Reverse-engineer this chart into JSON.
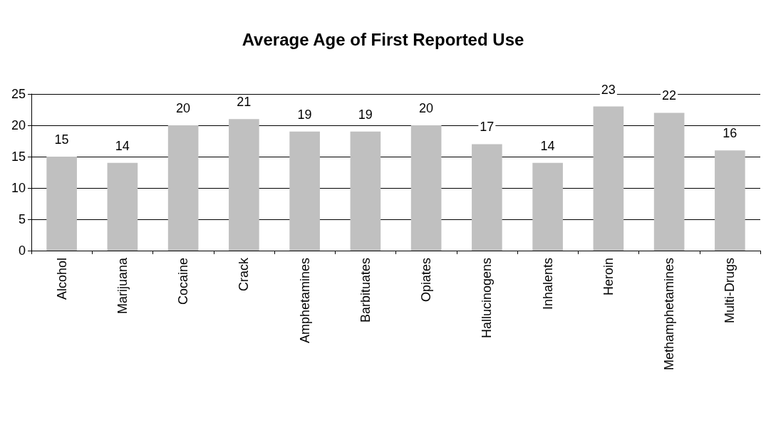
{
  "chart_data": {
    "type": "bar",
    "title": "Average Age of First Reported Use",
    "categories": [
      "Alcohol",
      "Marijuana",
      "Cocaine",
      "Crack",
      "Amphetamines",
      "Barbituates",
      "Opiates",
      "Hallucinogens",
      "Inhalents",
      "Heroin",
      "Methamphetamines",
      "Multi-Drugs"
    ],
    "values": [
      15,
      14,
      20,
      21,
      19,
      19,
      20,
      17,
      14,
      23,
      22,
      16
    ],
    "color": "#c0c0c0",
    "ylim": [
      0,
      25
    ],
    "yticks": [
      0,
      5,
      10,
      15,
      20,
      25
    ],
    "grid": "y",
    "data_labels": true
  }
}
